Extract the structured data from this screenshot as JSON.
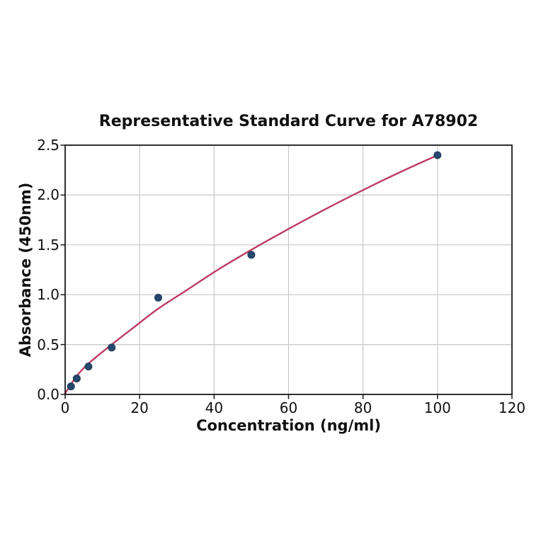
{
  "chart_data": {
    "type": "scatter",
    "title": "Representative Standard Curve for A78902",
    "xlabel": "Concentration (ng/ml)",
    "ylabel": "Absorbance (450nm)",
    "xlim": [
      0,
      120
    ],
    "ylim": [
      0,
      2.5
    ],
    "grid": true,
    "legend": false,
    "xticks": [
      {
        "value": 0,
        "label": "0"
      },
      {
        "value": 20,
        "label": "20"
      },
      {
        "value": 40,
        "label": "40"
      },
      {
        "value": 60,
        "label": "60"
      },
      {
        "value": 80,
        "label": "80"
      },
      {
        "value": 100,
        "label": "100"
      },
      {
        "value": 120,
        "label": "120"
      }
    ],
    "yticks": [
      {
        "value": 0.0,
        "label": "0.0"
      },
      {
        "value": 0.5,
        "label": "0.5"
      },
      {
        "value": 1.0,
        "label": "1.0"
      },
      {
        "value": 1.5,
        "label": "1.5"
      },
      {
        "value": 2.0,
        "label": "2.0"
      },
      {
        "value": 2.5,
        "label": "2.5"
      }
    ],
    "series": [
      {
        "name": "standard-points",
        "type": "scatter",
        "color": "#27486e",
        "edge_color": "#1d3a59",
        "marker_radius": 5,
        "points": [
          [
            1.56,
            0.08
          ],
          [
            3.12,
            0.16
          ],
          [
            6.25,
            0.28
          ],
          [
            12.5,
            0.47
          ],
          [
            25,
            0.97
          ],
          [
            50,
            1.4
          ],
          [
            100,
            2.4
          ]
        ]
      },
      {
        "name": "fitted-curve",
        "type": "line",
        "color": "#bc3c62",
        "line_width": 2.4,
        "points": [
          [
            0,
            0.01
          ],
          [
            1.56,
            0.1
          ],
          [
            3.12,
            0.185
          ],
          [
            6.25,
            0.31
          ],
          [
            12.5,
            0.5
          ],
          [
            18,
            0.66
          ],
          [
            25,
            0.86
          ],
          [
            32,
            1.03
          ],
          [
            41,
            1.25
          ],
          [
            50,
            1.45
          ],
          [
            60,
            1.66
          ],
          [
            70,
            1.86
          ],
          [
            80,
            2.05
          ],
          [
            90,
            2.23
          ],
          [
            100,
            2.4
          ]
        ]
      }
    ],
    "colors": {
      "background": "#ffffff",
      "gridline": "#c9c9c9",
      "spine": "#1a1a1a",
      "text": "#111111"
    }
  }
}
